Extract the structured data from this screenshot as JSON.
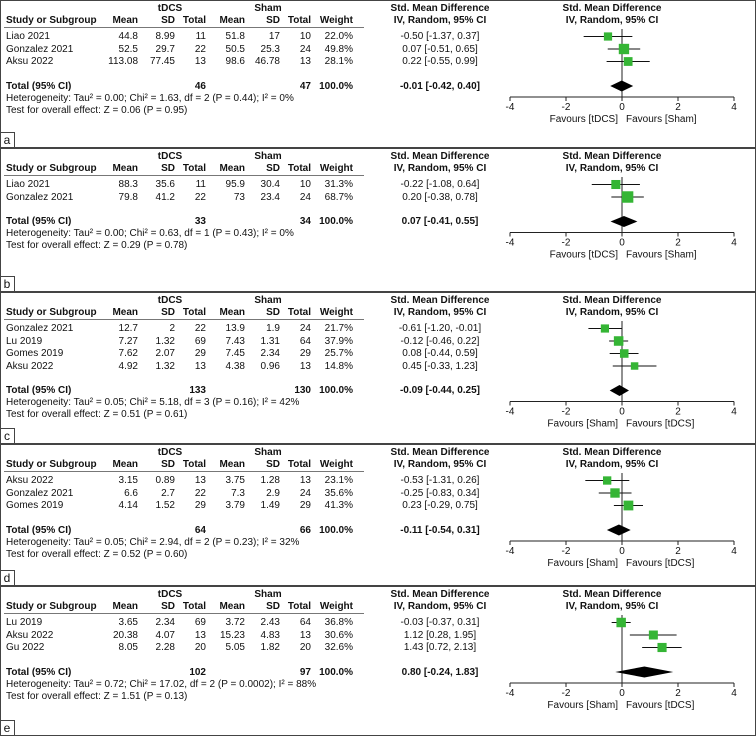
{
  "header": {
    "study": "Study or Subgroup",
    "mean": "Mean",
    "sd": "SD",
    "total": "Total",
    "weight": "Weight",
    "smd": "Std. Mean Difference",
    "method": "IV, Random, 95% CI"
  },
  "chart_data": [
    {
      "type": "forest",
      "panel": "a",
      "groups": [
        "tDCS",
        "Sham"
      ],
      "studies": [
        {
          "name": "Liao 2021",
          "m1": "44.8",
          "sd1": "8.99",
          "n1": "11",
          "m2": "51.8",
          "sd2": "17",
          "n2": "10",
          "weight": "22.0%",
          "ci": "-0.50 [-1.37, 0.37]",
          "est": -0.5,
          "lo": -1.37,
          "hi": 0.37,
          "w": 22.0
        },
        {
          "name": "Gonzalez 2021",
          "m1": "52.5",
          "sd1": "29.7",
          "n1": "22",
          "m2": "50.5",
          "sd2": "25.3",
          "n2": "24",
          "weight": "49.8%",
          "ci": "0.07 [-0.51, 0.65]",
          "est": 0.07,
          "lo": -0.51,
          "hi": 0.65,
          "w": 49.8
        },
        {
          "name": "Aksu 2022",
          "m1": "113.08",
          "sd1": "77.45",
          "n1": "13",
          "m2": "98.6",
          "sd2": "46.78",
          "n2": "13",
          "weight": "28.1%",
          "ci": "0.22 [-0.55, 0.99]",
          "est": 0.22,
          "lo": -0.55,
          "hi": 0.99,
          "w": 28.1
        }
      ],
      "total": {
        "label": "Total (95% CI)",
        "n1": "46",
        "n2": "47",
        "weight": "100.0%",
        "ci": "-0.01 [-0.42, 0.40]",
        "est": -0.01,
        "lo": -0.42,
        "hi": 0.4
      },
      "heterogeneity": "Heterogeneity: Tau² = 0.00; Chi² = 1.63, df = 2 (P = 0.44); I² = 0%",
      "overall": "Test for overall effect: Z = 0.06 (P = 0.95)",
      "xlim": [
        -4,
        4
      ],
      "ticks": [
        "-4",
        "-2",
        "0",
        "2",
        "4"
      ],
      "favours_left": "Favours [tDCS]",
      "favours_right": "Favours [Sham]"
    },
    {
      "type": "forest",
      "panel": "b",
      "groups": [
        "tDCS",
        "Sham"
      ],
      "studies": [
        {
          "name": "Liao 2021",
          "m1": "88.3",
          "sd1": "35.6",
          "n1": "11",
          "m2": "95.9",
          "sd2": "30.4",
          "n2": "10",
          "weight": "31.3%",
          "ci": "-0.22 [-1.08, 0.64]",
          "est": -0.22,
          "lo": -1.08,
          "hi": 0.64,
          "w": 31.3
        },
        {
          "name": "Gonzalez 2021",
          "m1": "79.8",
          "sd1": "41.2",
          "n1": "22",
          "m2": "73",
          "sd2": "23.4",
          "n2": "24",
          "weight": "68.7%",
          "ci": "0.20 [-0.38, 0.78]",
          "est": 0.2,
          "lo": -0.38,
          "hi": 0.78,
          "w": 68.7
        }
      ],
      "total": {
        "label": "Total (95% CI)",
        "n1": "33",
        "n2": "34",
        "weight": "100.0%",
        "ci": "0.07 [-0.41, 0.55]",
        "est": 0.07,
        "lo": -0.41,
        "hi": 0.55
      },
      "heterogeneity": "Heterogeneity: Tau² = 0.00; Chi² = 0.63, df = 1 (P = 0.43); I² = 0%",
      "overall": "Test for overall effect: Z = 0.29 (P = 0.78)",
      "xlim": [
        -4,
        4
      ],
      "ticks": [
        "-4",
        "-2",
        "0",
        "2",
        "4"
      ],
      "favours_left": "Favours [tDCS]",
      "favours_right": "Favours [Sham]"
    },
    {
      "type": "forest",
      "panel": "c",
      "groups": [
        "tDCS",
        "Sham"
      ],
      "studies": [
        {
          "name": "Gonzalez 2021",
          "m1": "12.7",
          "sd1": "2",
          "n1": "22",
          "m2": "13.9",
          "sd2": "1.9",
          "n2": "24",
          "weight": "21.7%",
          "ci": "-0.61 [-1.20, -0.01]",
          "est": -0.61,
          "lo": -1.2,
          "hi": -0.01,
          "w": 21.7
        },
        {
          "name": "Lu 2019",
          "m1": "7.27",
          "sd1": "1.32",
          "n1": "69",
          "m2": "7.43",
          "sd2": "1.31",
          "n2": "64",
          "weight": "37.9%",
          "ci": "-0.12 [-0.46, 0.22]",
          "est": -0.12,
          "lo": -0.46,
          "hi": 0.22,
          "w": 37.9
        },
        {
          "name": "Gomes 2019",
          "m1": "7.62",
          "sd1": "2.07",
          "n1": "29",
          "m2": "7.45",
          "sd2": "2.34",
          "n2": "29",
          "weight": "25.7%",
          "ci": "0.08 [-0.44, 0.59]",
          "est": 0.08,
          "lo": -0.44,
          "hi": 0.59,
          "w": 25.7
        },
        {
          "name": "Aksu 2022",
          "m1": "4.92",
          "sd1": "1.32",
          "n1": "13",
          "m2": "4.38",
          "sd2": "0.96",
          "n2": "13",
          "weight": "14.8%",
          "ci": "0.45 [-0.33, 1.23]",
          "est": 0.45,
          "lo": -0.33,
          "hi": 1.23,
          "w": 14.8
        }
      ],
      "total": {
        "label": "Total (95% CI)",
        "n1": "133",
        "n2": "130",
        "weight": "100.0%",
        "ci": "-0.09 [-0.44, 0.25]",
        "est": -0.09,
        "lo": -0.44,
        "hi": 0.25
      },
      "heterogeneity": "Heterogeneity: Tau² = 0.05; Chi² = 5.18, df = 3 (P = 0.16); I² = 42%",
      "overall": "Test for overall effect: Z = 0.51 (P = 0.61)",
      "xlim": [
        -4,
        4
      ],
      "ticks": [
        "-4",
        "-2",
        "0",
        "2",
        "4"
      ],
      "favours_left": "Favours [Sham]",
      "favours_right": "Favours [tDCS]"
    },
    {
      "type": "forest",
      "panel": "d",
      "groups": [
        "tDCS",
        "Sham"
      ],
      "studies": [
        {
          "name": "Aksu 2022",
          "m1": "3.15",
          "sd1": "0.89",
          "n1": "13",
          "m2": "3.75",
          "sd2": "1.28",
          "n2": "13",
          "weight": "23.1%",
          "ci": "-0.53 [-1.31, 0.26]",
          "est": -0.53,
          "lo": -1.31,
          "hi": 0.26,
          "w": 23.1
        },
        {
          "name": "Gonzalez 2021",
          "m1": "6.6",
          "sd1": "2.7",
          "n1": "22",
          "m2": "7.3",
          "sd2": "2.9",
          "n2": "24",
          "weight": "35.6%",
          "ci": "-0.25 [-0.83, 0.34]",
          "est": -0.25,
          "lo": -0.83,
          "hi": 0.34,
          "w": 35.6
        },
        {
          "name": "Gomes 2019",
          "m1": "4.14",
          "sd1": "1.52",
          "n1": "29",
          "m2": "3.79",
          "sd2": "1.49",
          "n2": "29",
          "weight": "41.3%",
          "ci": "0.23 [-0.29, 0.75]",
          "est": 0.23,
          "lo": -0.29,
          "hi": 0.75,
          "w": 41.3
        }
      ],
      "total": {
        "label": "Total (95% CI)",
        "n1": "64",
        "n2": "66",
        "weight": "100.0%",
        "ci": "-0.11 [-0.54, 0.31]",
        "est": -0.11,
        "lo": -0.54,
        "hi": 0.31
      },
      "heterogeneity": "Heterogeneity: Tau² = 0.05; Chi² = 2.94, df = 2 (P = 0.23); I² = 32%",
      "overall": "Test for overall effect: Z = 0.52 (P = 0.60)",
      "xlim": [
        -4,
        4
      ],
      "ticks": [
        "-4",
        "-2",
        "0",
        "2",
        "4"
      ],
      "favours_left": "Favours [Sham]",
      "favours_right": "Favours [tDCS]"
    },
    {
      "type": "forest",
      "panel": "e",
      "groups": [
        "tDCS",
        "Sham"
      ],
      "studies": [
        {
          "name": "Lu 2019",
          "m1": "3.65",
          "sd1": "2.34",
          "n1": "69",
          "m2": "3.72",
          "sd2": "2.43",
          "n2": "64",
          "weight": "36.8%",
          "ci": "-0.03 [-0.37, 0.31]",
          "est": -0.03,
          "lo": -0.37,
          "hi": 0.31,
          "w": 36.8
        },
        {
          "name": "Aksu 2022",
          "m1": "20.38",
          "sd1": "4.07",
          "n1": "13",
          "m2": "15.23",
          "sd2": "4.83",
          "n2": "13",
          "weight": "30.6%",
          "ci": "1.12 [0.28, 1.95]",
          "est": 1.12,
          "lo": 0.28,
          "hi": 1.95,
          "w": 30.6
        },
        {
          "name": "Gu 2022",
          "m1": "8.05",
          "sd1": "2.28",
          "n1": "20",
          "m2": "5.05",
          "sd2": "1.82",
          "n2": "20",
          "weight": "32.6%",
          "ci": "1.43 [0.72, 2.13]",
          "est": 1.43,
          "lo": 0.72,
          "hi": 2.13,
          "w": 32.6
        }
      ],
      "total": {
        "label": "Total (95% CI)",
        "n1": "102",
        "n2": "97",
        "weight": "100.0%",
        "ci": "0.80 [-0.24, 1.83]",
        "est": 0.8,
        "lo": -0.24,
        "hi": 1.83
      },
      "heterogeneity": "Heterogeneity: Tau² = 0.72; Chi² = 17.02, df = 2 (P = 0.0002); I² = 88%",
      "overall": "Test for overall effect: Z = 1.51 (P = 0.13)",
      "xlim": [
        -4,
        4
      ],
      "ticks": [
        "-4",
        "-2",
        "0",
        "2",
        "4"
      ],
      "favours_left": "Favours [Sham]",
      "favours_right": "Favours [tDCS]"
    }
  ],
  "colors": {
    "marker": "#35b535",
    "line": "#111111",
    "diamond": "#000000"
  }
}
